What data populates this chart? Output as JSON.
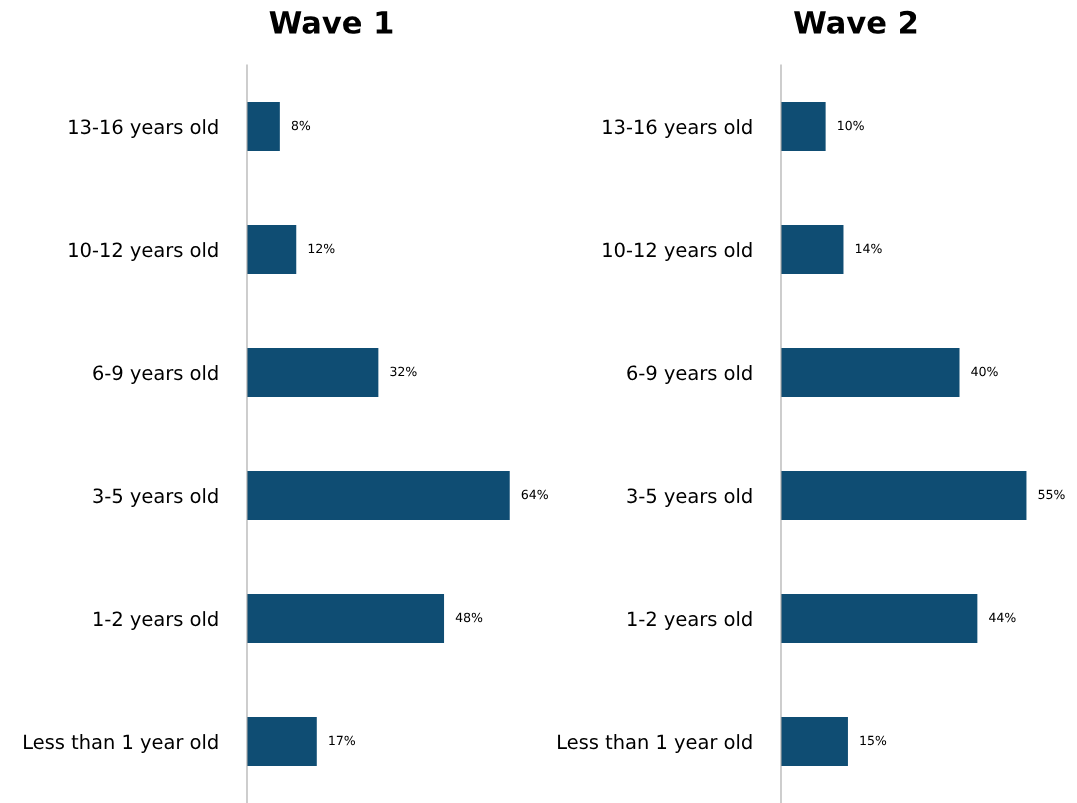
{
  "chart_data": [
    {
      "type": "bar",
      "orientation": "horizontal",
      "title": "Wave 1",
      "categories": [
        "13-16 years old",
        "10-12 years old",
        "6-9 years old",
        "3-5 years old",
        "1-2 years old",
        "Less than 1 year old"
      ],
      "values": [
        8,
        12,
        32,
        64,
        48,
        17
      ],
      "value_labels": [
        "8%",
        "12%",
        "32%",
        "64%",
        "48%",
        "17%"
      ],
      "color": "#0f4d73",
      "tick_labels": "y",
      "grid": false
    },
    {
      "type": "bar",
      "orientation": "horizontal",
      "title": "Wave 2",
      "categories": [
        "13-16 years old",
        "10-12 years old",
        "6-9 years old",
        "3-5 years old",
        "1-2 years old",
        "Less than 1 year old"
      ],
      "values": [
        10,
        14,
        40,
        55,
        44,
        15
      ],
      "value_labels": [
        "10%",
        "14%",
        "40%",
        "55%",
        "44%",
        "15%"
      ],
      "color": "#0f4d73",
      "tick_labels": "y",
      "grid": false
    }
  ]
}
